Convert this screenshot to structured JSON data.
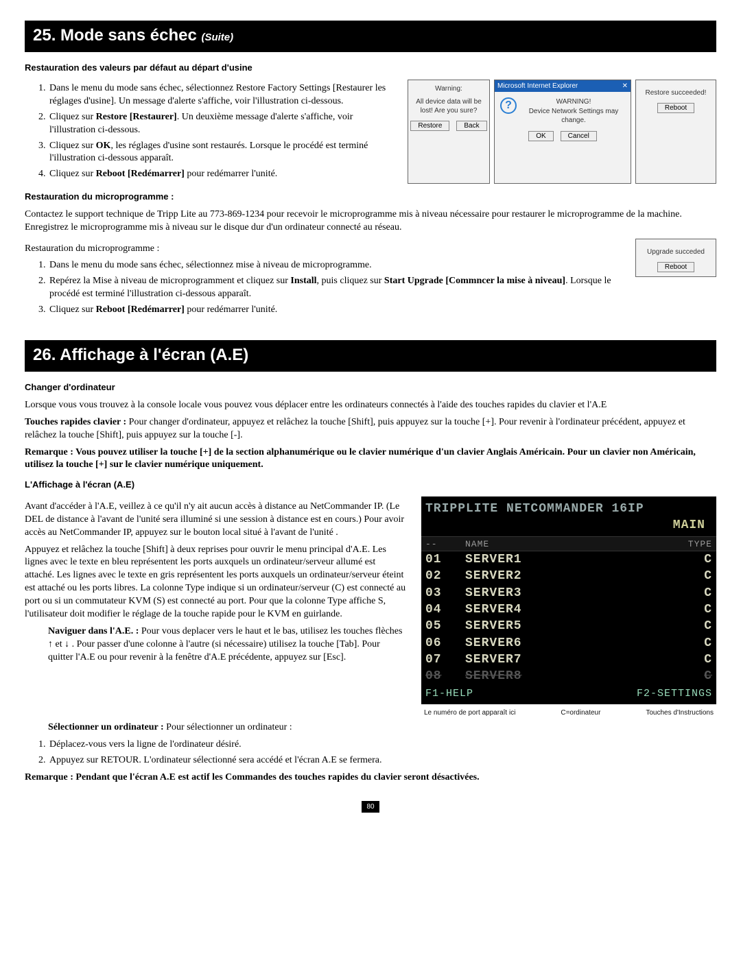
{
  "section25": {
    "bar_number": "25.",
    "bar_title": "Mode sans échec",
    "bar_suite": "(Suite)",
    "sub1": "Restauration des valeurs par défaut au départ d'usine",
    "steps_a": [
      "Dans le menu du mode sans échec, sélectionnez Restore Factory Settings [Restaurer les réglages d'usine]. Un message d'alerte s'affiche, voir l'illustration ci-dessous.",
      "Cliquez sur  Restore [Restaurer]. Un deuxième message d'alerte s'affiche, voir l'illustration ci-dessous.",
      "Cliquez sur OK, les réglages d'usine sont restaurés. Lorsque le procédé est terminé l'illustration ci-dessous apparaît.",
      "Cliquez sur Reboot [Redémarrer] pour redémarrer l'unité."
    ],
    "dlg1": {
      "title": "Warning:",
      "msg": "All device data will be lost! Are you sure?",
      "btn_restore": "Restore",
      "btn_back": "Back"
    },
    "dlg2": {
      "titlebar": "Microsoft Internet Explorer",
      "close": "✕",
      "line1": "WARNING!",
      "line2": "Device Network Settings may change.",
      "btn_ok": "OK",
      "btn_cancel": "Cancel"
    },
    "dlg3": {
      "msg": "Restore succeeded!",
      "btn": "Reboot"
    },
    "sub2": "Restauration du microprogramme :",
    "para_b": "Contactez le support technique de Tripp Lite au 773-869-1234 pour recevoir le microprogramme mis à niveau nécessaire pour restaurer le microprogramme de la machine. Enregistrez le microprogramme mis à niveau sur le disque dur d'un ordinateur connecté au réseau.",
    "para_c": "Restauration du microprogramme :",
    "steps_b": [
      "Dans le menu du mode sans échec, sélectionnez mise à niveau de microprogramme.",
      "Repérez la Mise à niveau de microprogramment et cliquez sur Install, puis cliquez sur Start Upgrade [Commncer la mise à niveau]. Lorsque le procédé est terminé l'illustration ci-dessous apparaît.",
      "Cliquez sur Reboot [Redémarrer] pour redémarrer l'unité."
    ],
    "dlg4": {
      "msg": "Upgrade succeded",
      "btn": "Reboot"
    }
  },
  "section26": {
    "bar_number": "26.",
    "bar_title": "Affichage à l'écran (A.E)",
    "sub1": "Changer d'ordinateur",
    "p1": "Lorsque vous vous trouvez à la console locale vous pouvez vous déplacer entre les ordinateurs connectés à l'aide des touches rapides du clavier et l'A.E",
    "p2_label": "Touches rapides clavier :",
    "p2": " Pour changer d'ordinateur, appuyez et relâchez la touche [Shift], puis appuyez sur la touche [+]. Pour revenir à l'ordinateur précédent, appuyez et relâchez la touche [Shift], puis appuyez sur la touche [-].",
    "p3": "Remarque : Vous pouvez utiliser la touche [+] de la section alphanumérique ou le clavier numérique d'un clavier Anglais Américain. Pour un clavier non Américain, utilisez la touche [+] sur le clavier numérique uniquement.",
    "sub2": "L'Affichage à l'écran (A.E)",
    "p4": "Avant d'accéder à l'A.E, veillez à ce qu'il n'y ait aucun accès à distance au NetCommander IP. (Le DEL de distance à l'avant de l'unité sera illuminé si une session à distance est en cours.) Pour avoir accès au NetCommander IP, appuyez sur le bouton local situé à l'avant de l'unité .",
    "p5": "Appuyez et relâchez la touche [Shift] à deux reprises pour ouvrir le menu principal d'A.E. Les lignes avec le texte en bleu représentent les ports auxquels un ordinateur/serveur allumé est attaché. Les lignes avec le texte en gris représentent les ports auxquels un ordinateur/serveur éteint est attaché ou les ports libres. La colonne Type indique si un ordinateur/serveur (C) est connecté au port ou si un commutateur KVM (S) est connecté au port. Pour que la colonne Type affiche S, l'utilisateur doit modifier le réglage de la touche rapide pour le KVM en guirlande.",
    "p6_label": "Naviguer dans l'A.E. :",
    "p6": " Pour vous deplacer vers le haut et le bas, utilisez les touches flèches ↑ et ↓ . Pour passer d'une colonne à l'autre (si nécessaire) utilisez la touche [Tab]. Pour quitter l'A.E ou pour revenir à la fenêtre d'A.E précédente, appuyez sur [Esc].",
    "p7_label": "Sélectionner un ordinateur :",
    "p7": " Pour sélectionner un ordinateur :",
    "steps_c": [
      "Déplacez-vous vers la ligne de l'ordinateur désiré.",
      "Appuyez sur RETOUR. L'ordinateur sélectionné sera accédé et l'écran A.E se fermera."
    ],
    "p8": "Remarque : Pendant que l'écran A.E est actif les Commandes des touches rapides du clavier seront désactivées.",
    "osd": {
      "header1": "TRIPPLITE NETCOMMANDER 16IP",
      "header2": "MAIN",
      "col_name": "NAME",
      "col_type": "TYPE",
      "rows": [
        {
          "n": "01",
          "name": "SERVER1",
          "type": "C",
          "dim": false
        },
        {
          "n": "02",
          "name": "SERVER2",
          "type": "C",
          "dim": false
        },
        {
          "n": "03",
          "name": "SERVER3",
          "type": "C",
          "dim": false
        },
        {
          "n": "04",
          "name": "SERVER4",
          "type": "C",
          "dim": false
        },
        {
          "n": "05",
          "name": "SERVER5",
          "type": "C",
          "dim": false
        },
        {
          "n": "06",
          "name": "SERVER6",
          "type": "C",
          "dim": false
        },
        {
          "n": "07",
          "name": "SERVER7",
          "type": "C",
          "dim": false
        },
        {
          "n": "08",
          "name": "SERVER8",
          "type": "C",
          "dim": true
        }
      ],
      "foot_left": "F1-HELP",
      "foot_right": "F2-SETTINGS",
      "cap1": "Le numéro de port apparaît ici",
      "cap2": "C=ordinateur",
      "cap3": "Touches d'Instructions"
    }
  },
  "page_number": "80"
}
